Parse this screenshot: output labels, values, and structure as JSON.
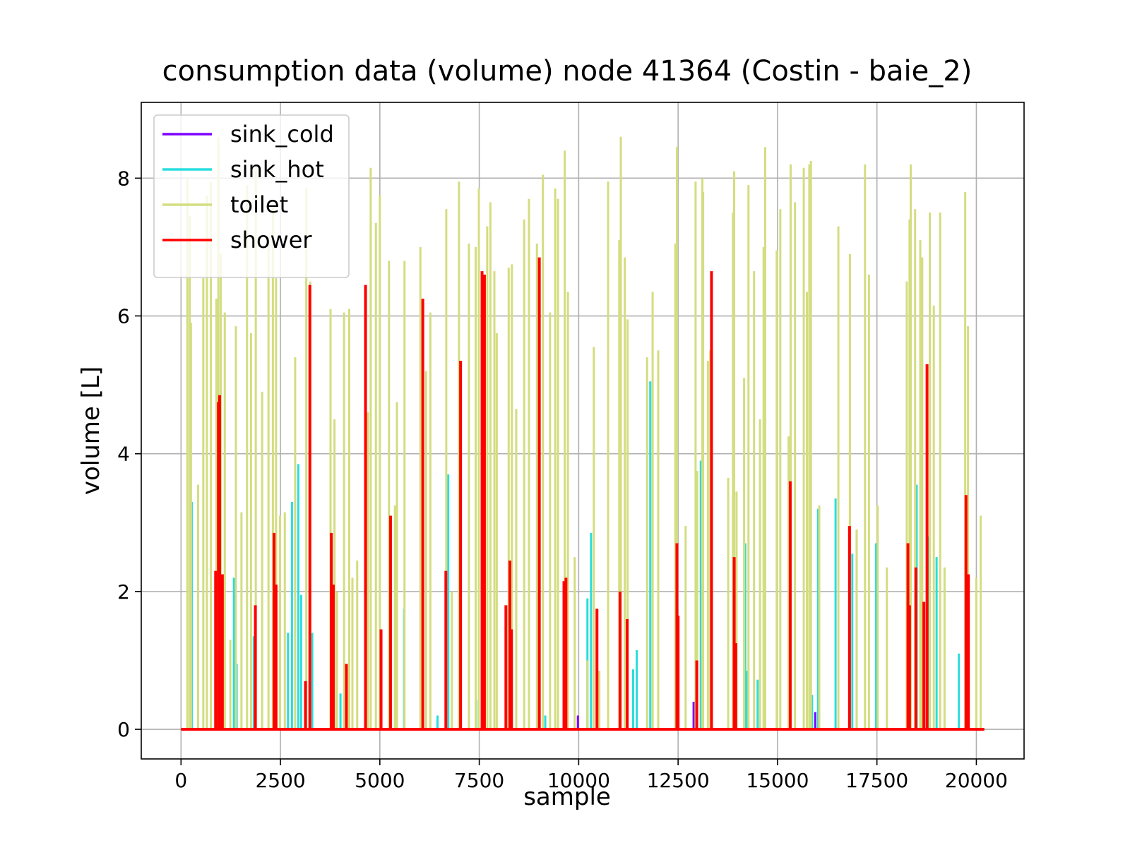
{
  "chart_data": {
    "type": "line",
    "title": "consumption data (volume) node 41364 (Costin - baie_2)",
    "xlabel": "sample",
    "ylabel": "volume [L]",
    "xlim": [
      -1000,
      21200
    ],
    "ylim": [
      -0.43,
      9.1
    ],
    "xticks": [
      0,
      2500,
      5000,
      7500,
      10000,
      12500,
      15000,
      17500,
      20000
    ],
    "yticks": [
      0,
      2,
      4,
      6,
      8
    ],
    "grid": true,
    "legend_position": "upper-left",
    "x_end": 20200,
    "series": [
      {
        "name": "sink_cold",
        "color": "#8000ff",
        "spikes": [
          [
            9980,
            0.2
          ],
          [
            12890,
            0.4
          ],
          [
            15950,
            0.25
          ]
        ]
      },
      {
        "name": "sink_hot",
        "color": "#2adddd",
        "spikes": [
          [
            270,
            3.3
          ],
          [
            1330,
            2.2
          ],
          [
            1400,
            0.95
          ],
          [
            1830,
            1.35
          ],
          [
            2690,
            1.4
          ],
          [
            2790,
            3.3
          ],
          [
            2950,
            3.85
          ],
          [
            3020,
            1.95
          ],
          [
            3300,
            1.4
          ],
          [
            4010,
            0.52
          ],
          [
            4690,
            0.4
          ],
          [
            5610,
            1.75
          ],
          [
            6450,
            0.2
          ],
          [
            6720,
            3.7
          ],
          [
            7420,
            0.43
          ],
          [
            9160,
            0.2
          ],
          [
            10220,
            1.9
          ],
          [
            10310,
            2.85
          ],
          [
            11370,
            0.87
          ],
          [
            11460,
            1.15
          ],
          [
            11800,
            5.05
          ],
          [
            13070,
            3.9
          ],
          [
            14190,
            2.7
          ],
          [
            14230,
            0.85
          ],
          [
            14500,
            0.72
          ],
          [
            15870,
            0.5
          ],
          [
            16020,
            3.2
          ],
          [
            16460,
            3.35
          ],
          [
            16880,
            2.55
          ],
          [
            17480,
            2.7
          ],
          [
            18500,
            3.55
          ],
          [
            18800,
            2.8
          ],
          [
            19000,
            2.5
          ],
          [
            19560,
            1.1
          ]
        ]
      },
      {
        "name": "toilet",
        "color": "#d4dd80",
        "spikes": [
          [
            160,
            8.0
          ],
          [
            220,
            7.45
          ],
          [
            250,
            5.9
          ],
          [
            430,
            3.55
          ],
          [
            560,
            6.55
          ],
          [
            650,
            7.75
          ],
          [
            750,
            7.95
          ],
          [
            890,
            6.25
          ],
          [
            940,
            8.6
          ],
          [
            1000,
            6.9
          ],
          [
            1100,
            6.05
          ],
          [
            1240,
            1.3
          ],
          [
            1380,
            5.85
          ],
          [
            1520,
            3.15
          ],
          [
            1660,
            7.9
          ],
          [
            1760,
            5.75
          ],
          [
            1880,
            8.2
          ],
          [
            2040,
            4.9
          ],
          [
            2200,
            7.15
          ],
          [
            2310,
            7.6
          ],
          [
            2390,
            6.55
          ],
          [
            2490,
            3.1
          ],
          [
            2610,
            3.15
          ],
          [
            2870,
            5.4
          ],
          [
            3150,
            7.85
          ],
          [
            3250,
            6.5
          ],
          [
            3760,
            6.1
          ],
          [
            3860,
            4.5
          ],
          [
            3920,
            2.0
          ],
          [
            4100,
            6.05
          ],
          [
            4230,
            6.1
          ],
          [
            4310,
            2.2
          ],
          [
            4430,
            2.45
          ],
          [
            4700,
            4.6
          ],
          [
            4770,
            8.15
          ],
          [
            4900,
            7.35
          ],
          [
            5000,
            7.75
          ],
          [
            5230,
            6.8
          ],
          [
            5380,
            3.25
          ],
          [
            5430,
            4.75
          ],
          [
            5620,
            6.8
          ],
          [
            6020,
            7.0
          ],
          [
            6160,
            5.2
          ],
          [
            6270,
            6.05
          ],
          [
            6670,
            7.55
          ],
          [
            6810,
            2.0
          ],
          [
            6990,
            7.95
          ],
          [
            7240,
            7.05
          ],
          [
            7410,
            7.0
          ],
          [
            7490,
            7.85
          ],
          [
            7700,
            7.3
          ],
          [
            7780,
            7.65
          ],
          [
            7880,
            6.65
          ],
          [
            7940,
            5.75
          ],
          [
            8240,
            6.7
          ],
          [
            8320,
            6.75
          ],
          [
            8430,
            4.65
          ],
          [
            8630,
            7.4
          ],
          [
            8750,
            7.7
          ],
          [
            8950,
            7.05
          ],
          [
            9100,
            8.05
          ],
          [
            9280,
            6.05
          ],
          [
            9410,
            7.85
          ],
          [
            9480,
            7.7
          ],
          [
            9650,
            8.4
          ],
          [
            9730,
            6.35
          ],
          [
            9900,
            2.5
          ],
          [
            10220,
            1.0
          ],
          [
            10380,
            5.55
          ],
          [
            10520,
            0.85
          ],
          [
            10740,
            7.95
          ],
          [
            11020,
            7.1
          ],
          [
            11060,
            8.6
          ],
          [
            11160,
            6.85
          ],
          [
            11230,
            5.95
          ],
          [
            11720,
            5.4
          ],
          [
            11860,
            6.35
          ],
          [
            12000,
            5.5
          ],
          [
            12430,
            7.05
          ],
          [
            12470,
            8.45
          ],
          [
            12690,
            2.95
          ],
          [
            12940,
            7.95
          ],
          [
            12980,
            3.75
          ],
          [
            13110,
            8.0
          ],
          [
            13130,
            7.8
          ],
          [
            13250,
            5.35
          ],
          [
            13310,
            5.5
          ],
          [
            13350,
            5.55
          ],
          [
            13760,
            3.65
          ],
          [
            13880,
            7.5
          ],
          [
            13910,
            8.1
          ],
          [
            13970,
            3.45
          ],
          [
            14160,
            5.1
          ],
          [
            14270,
            7.9
          ],
          [
            14410,
            6.65
          ],
          [
            14560,
            4.5
          ],
          [
            14690,
            8.45
          ],
          [
            14650,
            7.0
          ],
          [
            14980,
            6.95
          ],
          [
            15070,
            7.55
          ],
          [
            15280,
            4.25
          ],
          [
            15330,
            8.2
          ],
          [
            15440,
            7.65
          ],
          [
            15660,
            8.15
          ],
          [
            15740,
            6.35
          ],
          [
            15800,
            8.2
          ],
          [
            15840,
            8.25
          ],
          [
            16050,
            3.25
          ],
          [
            16530,
            7.3
          ],
          [
            16820,
            6.9
          ],
          [
            16990,
            2.9
          ],
          [
            17200,
            8.2
          ],
          [
            17300,
            6.6
          ],
          [
            17520,
            3.25
          ],
          [
            17750,
            2.35
          ],
          [
            18250,
            6.5
          ],
          [
            18320,
            7.4
          ],
          [
            18350,
            8.2
          ],
          [
            18460,
            7.55
          ],
          [
            18590,
            7.1
          ],
          [
            18640,
            6.85
          ],
          [
            18830,
            7.5
          ],
          [
            18930,
            6.15
          ],
          [
            19090,
            7.5
          ],
          [
            19200,
            2.35
          ],
          [
            19720,
            7.8
          ],
          [
            19790,
            5.85
          ],
          [
            20000,
            2.2
          ],
          [
            20110,
            3.1
          ]
        ]
      },
      {
        "name": "shower",
        "color": "#ff0000",
        "spikes": [
          [
            870,
            2.3
          ],
          [
            940,
            4.75
          ],
          [
            970,
            4.85
          ],
          [
            1040,
            2.25
          ],
          [
            1870,
            1.8
          ],
          [
            2340,
            2.85
          ],
          [
            2390,
            2.1
          ],
          [
            3130,
            0.7
          ],
          [
            3240,
            6.45
          ],
          [
            3780,
            2.85
          ],
          [
            3830,
            2.1
          ],
          [
            4160,
            0.95
          ],
          [
            4640,
            6.45
          ],
          [
            5030,
            1.45
          ],
          [
            5270,
            3.1
          ],
          [
            6080,
            6.25
          ],
          [
            6660,
            2.3
          ],
          [
            7030,
            5.35
          ],
          [
            7570,
            6.65
          ],
          [
            7630,
            6.6
          ],
          [
            8170,
            1.8
          ],
          [
            8270,
            2.45
          ],
          [
            8310,
            1.45
          ],
          [
            9010,
            6.85
          ],
          [
            9630,
            2.15
          ],
          [
            9680,
            2.2
          ],
          [
            10460,
            1.75
          ],
          [
            11040,
            2.0
          ],
          [
            11220,
            1.6
          ],
          [
            12470,
            2.7
          ],
          [
            12500,
            1.65
          ],
          [
            12970,
            1.0
          ],
          [
            13340,
            6.65
          ],
          [
            13910,
            2.5
          ],
          [
            13950,
            1.25
          ],
          [
            15320,
            3.6
          ],
          [
            16810,
            2.95
          ],
          [
            18280,
            2.7
          ],
          [
            18320,
            1.8
          ],
          [
            18480,
            2.35
          ],
          [
            18680,
            1.85
          ],
          [
            18760,
            5.3
          ],
          [
            19740,
            3.4
          ],
          [
            19800,
            2.25
          ]
        ]
      }
    ]
  }
}
